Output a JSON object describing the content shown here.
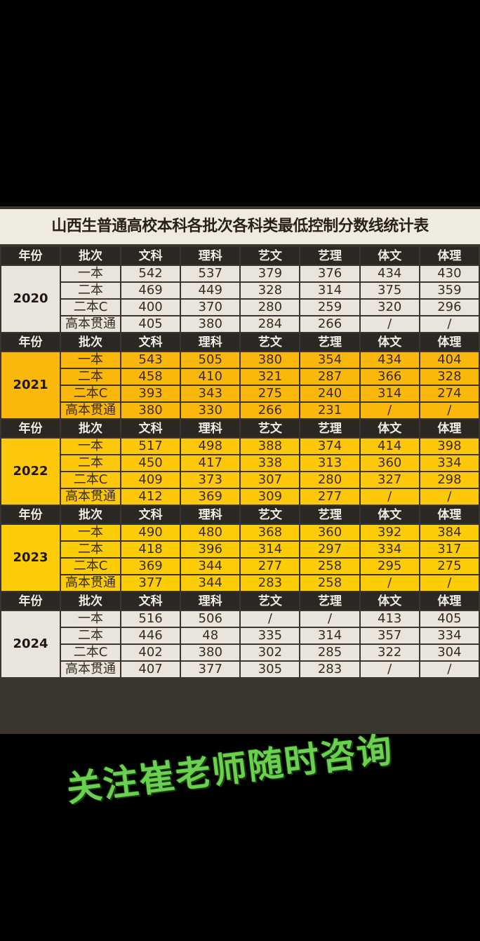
{
  "title": "山西生普通高校本科各批次各科类最低控制分数线统计表",
  "headers": [
    "年份",
    "批次",
    "文科",
    "理科",
    "艺文",
    "艺理",
    "体文",
    "体理"
  ],
  "blocks": [
    {
      "year": "2020",
      "rows": [
        {
          "batch": "一本",
          "values": [
            "542",
            "537",
            "379",
            "376",
            "434",
            "430"
          ]
        },
        {
          "batch": "二本",
          "values": [
            "469",
            "449",
            "328",
            "314",
            "375",
            "359"
          ]
        },
        {
          "batch": "二本C",
          "values": [
            "400",
            "370",
            "280",
            "259",
            "320",
            "296"
          ]
        },
        {
          "batch": "高本贯通",
          "values": [
            "405",
            "380",
            "284",
            "266",
            "/",
            "/"
          ]
        }
      ]
    },
    {
      "year": "2021",
      "rows": [
        {
          "batch": "一本",
          "values": [
            "543",
            "505",
            "380",
            "354",
            "434",
            "404"
          ]
        },
        {
          "batch": "二本",
          "values": [
            "458",
            "410",
            "321",
            "287",
            "366",
            "328"
          ]
        },
        {
          "batch": "二本C",
          "values": [
            "393",
            "343",
            "275",
            "240",
            "314",
            "274"
          ]
        },
        {
          "batch": "高本贯通",
          "values": [
            "380",
            "330",
            "266",
            "231",
            "/",
            "/"
          ]
        }
      ]
    },
    {
      "year": "2022",
      "rows": [
        {
          "batch": "一本",
          "values": [
            "517",
            "498",
            "388",
            "374",
            "414",
            "398"
          ]
        },
        {
          "batch": "二本",
          "values": [
            "450",
            "417",
            "338",
            "313",
            "360",
            "334"
          ]
        },
        {
          "batch": "二本C",
          "values": [
            "409",
            "373",
            "307",
            "280",
            "327",
            "298"
          ]
        },
        {
          "batch": "高本贯通",
          "values": [
            "412",
            "369",
            "309",
            "277",
            "/",
            "/"
          ]
        }
      ]
    },
    {
      "year": "2023",
      "rows": [
        {
          "batch": "一本",
          "values": [
            "490",
            "480",
            "368",
            "360",
            "392",
            "384"
          ]
        },
        {
          "batch": "二本",
          "values": [
            "418",
            "396",
            "314",
            "297",
            "334",
            "317"
          ]
        },
        {
          "batch": "二本C",
          "values": [
            "369",
            "344",
            "277",
            "258",
            "295",
            "275"
          ]
        },
        {
          "batch": "高本贯通",
          "values": [
            "377",
            "344",
            "283",
            "258",
            "/",
            "/"
          ]
        }
      ]
    },
    {
      "year": "2024",
      "rows": [
        {
          "batch": "一本",
          "values": [
            "516",
            "506",
            "/",
            "/",
            "413",
            "405"
          ]
        },
        {
          "batch": "二本",
          "values": [
            "446",
            "48",
            "335",
            "314",
            "357",
            "334"
          ]
        },
        {
          "batch": "二本C",
          "values": [
            "402",
            "380",
            "302",
            "285",
            "322",
            "304"
          ]
        },
        {
          "batch": "高本贯通",
          "values": [
            "407",
            "377",
            "305",
            "283",
            "/",
            "/"
          ]
        }
      ]
    }
  ],
  "block_colors": [
    "#e9e5dc",
    "#fbb80c",
    "#fdc70a",
    "#fdcc08",
    "#e9e5dc"
  ],
  "promo_text": "关注崔老师随时咨询"
}
